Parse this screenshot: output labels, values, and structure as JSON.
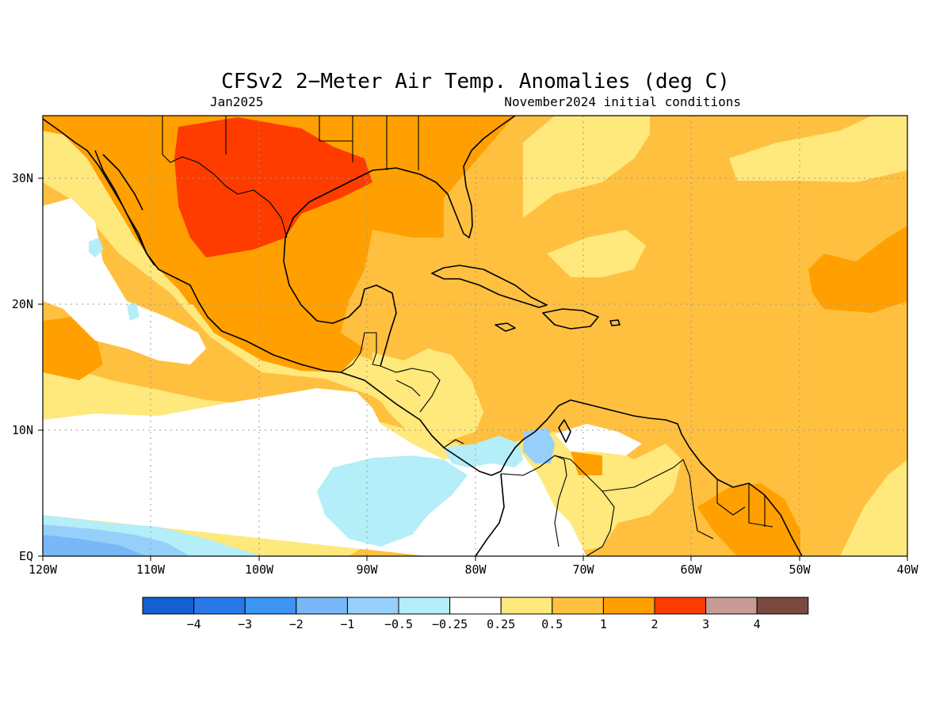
{
  "title": "CFSv2 2−Meter Air Temp. Anomalies (deg C)",
  "valid_month": "Jan2025",
  "initial_conditions": "November2024 initial conditions",
  "axes": {
    "lon_labels": [
      "120W",
      "110W",
      "100W",
      "90W",
      "80W",
      "70W",
      "60W",
      "50W",
      "40W"
    ],
    "lat_labels": [
      "EQ",
      "10N",
      "20N",
      "30N"
    ],
    "lon_range": [
      -120,
      -40
    ],
    "lat_range": [
      0,
      35
    ],
    "grid": true
  },
  "colorbar": {
    "labels": [
      "−4",
      "−3",
      "−2",
      "−1",
      "−0.5",
      "−0.25",
      "0.25",
      "0.5",
      "1",
      "2",
      "3",
      "4"
    ],
    "colors": [
      "#1560d0",
      "#2a78e8",
      "#3c95f0",
      "#78b8f8",
      "#96d0fa",
      "#b4eef8",
      "#ffffff",
      "#ffe87c",
      "#ffc040",
      "#ffa000",
      "#ff3c00",
      "#c89c94",
      "#7a4a40"
    ]
  },
  "palette": {
    "ocean_default": "#ffc040",
    "warm2": "#ffa000",
    "hot3": "#ff3c00",
    "pale": "#ffe87c",
    "neutral": "#ffffff",
    "cool_light": "#b4eef8",
    "cool_mid": "#96d0fa",
    "cool_deep": "#78b8f8"
  }
}
